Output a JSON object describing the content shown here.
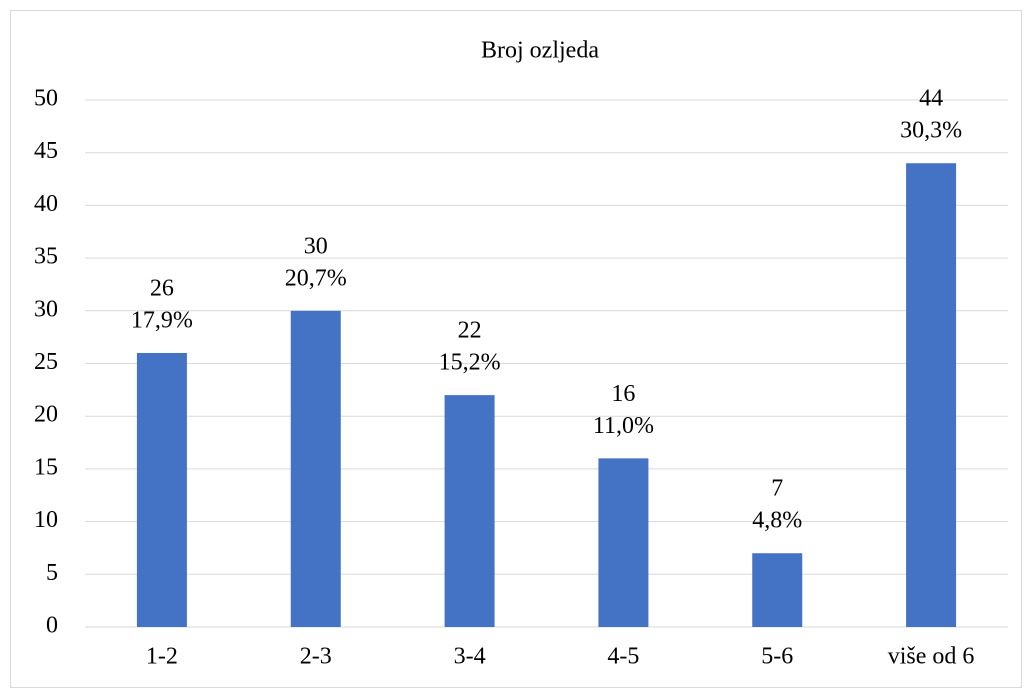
{
  "chart_data": {
    "type": "bar",
    "title": "Broj ozljeda",
    "categories": [
      "1-2",
      "2-3",
      "3-4",
      "4-5",
      "5-6",
      "više od 6"
    ],
    "values": [
      26,
      30,
      22,
      16,
      7,
      44
    ],
    "shares": [
      17.9,
      20.7,
      15.2,
      11.0,
      4.8,
      30.3
    ],
    "share_labels": [
      "17,9%",
      "20,7%",
      "15,2%",
      "11,0%",
      "4,8%",
      "30,3%"
    ],
    "color": "#4472c4",
    "ylim": [
      0,
      50
    ],
    "yticks": [
      0,
      5,
      10,
      15,
      20,
      25,
      30,
      35,
      40,
      45,
      50
    ],
    "grid": true
  }
}
